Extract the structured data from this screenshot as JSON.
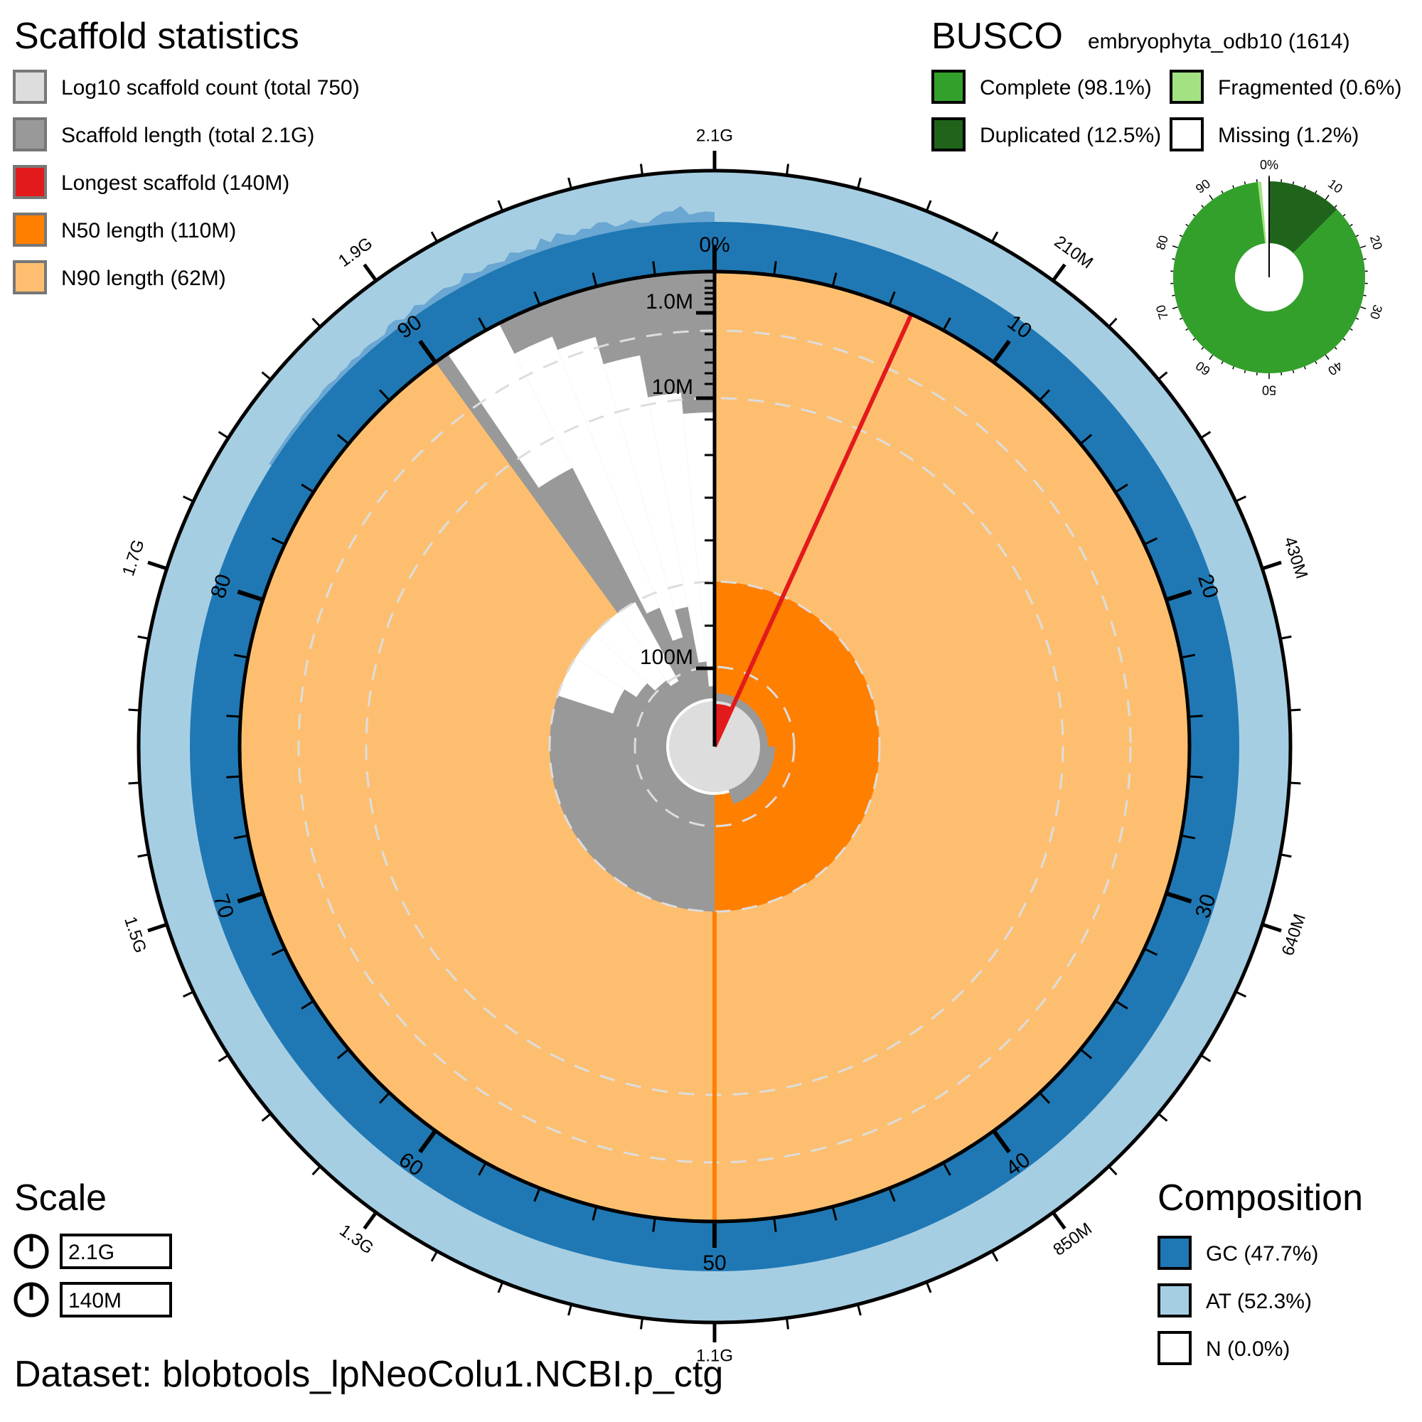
{
  "dataset_label": "Dataset: blobtools_lpNeoColu1.NCBI.p_ctg",
  "scaffold_stats": {
    "title": "Scaffold statistics",
    "legend": [
      {
        "label": "Log10 scaffold count (total 750)",
        "color": "#dddddd"
      },
      {
        "label": "Scaffold length (total 2.1G)",
        "color": "#999999"
      },
      {
        "label": "Longest scaffold (140M)",
        "color": "#e31a1c"
      },
      {
        "label": "N50 length (110M)",
        "color": "#ff7f00"
      },
      {
        "label": "N90 length (62M)",
        "color": "#fdbf6f"
      }
    ]
  },
  "busco": {
    "title": "BUSCO",
    "lineage": "embryophyta_odb10 (1614)",
    "legend": [
      {
        "label": "Complete (98.1%)",
        "color": "#33a02c"
      },
      {
        "label": "Fragmented (0.6%)",
        "color": "#a3e283"
      },
      {
        "label": "Duplicated (12.5%)",
        "color": "#20641c"
      },
      {
        "label": "Missing (1.2%)",
        "color": "#ffffff"
      }
    ],
    "tick_labels": [
      "0%",
      "10",
      "20",
      "30",
      "40",
      "50",
      "60",
      "70",
      "80",
      "90"
    ]
  },
  "scale": {
    "title": "Scale",
    "items": [
      "2.1G",
      "140M"
    ]
  },
  "composition": {
    "title": "Composition",
    "legend": [
      {
        "label": "GC (47.7%)",
        "color": "#1f78b4"
      },
      {
        "label": "AT (52.3%)",
        "color": "#a6cee3"
      },
      {
        "label": "N (0.0%)",
        "color": "#ffffff"
      }
    ]
  },
  "chart_data": {
    "type": "snail",
    "total_length": "2.1G",
    "scaffold_count": 750,
    "longest_scaffold": "140M",
    "n50": "110M",
    "n90": "62M",
    "outer_tick_labels": [
      "2.1G",
      "210M",
      "430M",
      "640M",
      "850M",
      "1.1G",
      "1.3G",
      "1.5G",
      "1.7G",
      "1.9G"
    ],
    "percent_tick_labels": [
      "0%",
      "10",
      "20",
      "30",
      "40",
      "50",
      "60",
      "70",
      "80",
      "90"
    ],
    "radial_axis_labels": [
      "1.0M",
      "10M",
      "100M"
    ],
    "gc_percent": 47.7,
    "at_percent": 52.3,
    "n_percent": 0.0,
    "busco": {
      "complete": 98.1,
      "single": 85.6,
      "duplicated": 12.5,
      "fragmented": 0.6,
      "missing": 1.2,
      "total": 1614
    },
    "n50_percent": 50,
    "n90_percent": 90,
    "longest_percent": 6.8
  }
}
